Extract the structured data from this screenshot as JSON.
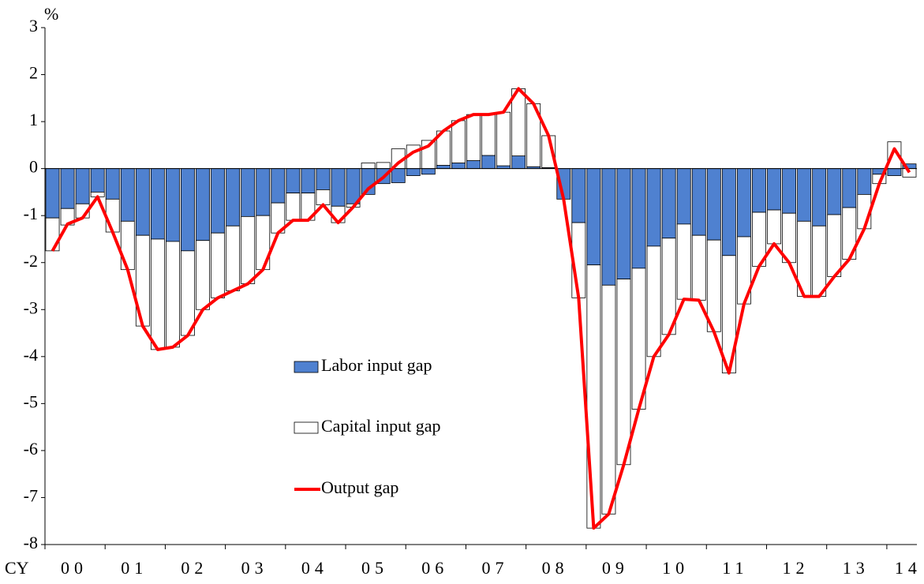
{
  "chart_data": {
    "type": "bar",
    "ylabel": "%",
    "xlabel": "CY",
    "categories": [
      "00",
      null,
      null,
      null,
      "01",
      null,
      null,
      null,
      "02",
      null,
      null,
      null,
      "03",
      null,
      null,
      null,
      "04",
      null,
      null,
      null,
      "05",
      null,
      null,
      null,
      "06",
      null,
      null,
      null,
      "07",
      null,
      null,
      null,
      "08",
      null,
      null,
      null,
      "09",
      null,
      null,
      null,
      "10",
      null,
      null,
      null,
      "11",
      null,
      null,
      null,
      "12",
      null,
      null,
      null,
      "13",
      null,
      null,
      null,
      "14",
      null
    ],
    "series": [
      {
        "name": "Labor input gap",
        "type": "bar",
        "color": "#4f81d0",
        "values": [
          -1.05,
          -0.85,
          -0.75,
          -0.5,
          -0.65,
          -1.12,
          -1.42,
          -1.5,
          -1.55,
          -1.75,
          -1.53,
          -1.37,
          -1.22,
          -1.02,
          -1.0,
          -0.73,
          -0.52,
          -0.52,
          -0.45,
          -0.8,
          -0.75,
          -0.55,
          -0.32,
          -0.3,
          -0.15,
          -0.12,
          0.07,
          0.12,
          0.17,
          0.28,
          0.06,
          0.27,
          0.04,
          0.02,
          -0.65,
          -1.15,
          -2.05,
          -2.48,
          -2.35,
          -2.12,
          -1.65,
          -1.48,
          -1.18,
          -1.42,
          -1.52,
          -1.85,
          -1.45,
          -0.93,
          -0.88,
          -0.95,
          -1.12,
          -1.22,
          -0.98,
          -0.83,
          -0.55,
          -0.12,
          -0.15,
          0.1
        ]
      },
      {
        "name": "Capital input gap",
        "type": "bar",
        "color": "#ffffff",
        "values": [
          -0.7,
          -0.35,
          -0.3,
          -0.1,
          -0.7,
          -1.03,
          -1.93,
          -2.35,
          -2.25,
          -1.8,
          -1.47,
          -1.38,
          -1.38,
          -1.43,
          -1.15,
          -0.64,
          -0.58,
          -0.58,
          -0.32,
          -0.35,
          -0.07,
          0.12,
          0.13,
          0.42,
          0.5,
          0.6,
          0.73,
          0.9,
          0.98,
          0.87,
          1.14,
          1.43,
          1.34,
          0.68,
          0,
          -1.6,
          -5.6,
          -4.87,
          -3.95,
          -3.0,
          -2.35,
          -2.05,
          -1.6,
          -1.38,
          -1.95,
          -2.5,
          -1.43,
          -1.15,
          -0.72,
          -1.05,
          -1.6,
          -1.5,
          -1.32,
          -1.1,
          -0.73,
          -0.2,
          0.57,
          -0.18
        ]
      },
      {
        "name": "Output gap",
        "type": "line",
        "color": "#ff0000",
        "values": [
          -1.75,
          -1.18,
          -1.05,
          -0.6,
          -1.35,
          -2.15,
          -3.35,
          -3.85,
          -3.8,
          -3.55,
          -3.0,
          -2.75,
          -2.6,
          -2.45,
          -2.15,
          -1.37,
          -1.1,
          -1.1,
          -0.77,
          -1.15,
          -0.82,
          -0.43,
          -0.19,
          0.12,
          0.35,
          0.48,
          0.8,
          1.02,
          1.15,
          1.15,
          1.2,
          1.7,
          1.38,
          0.7,
          -0.65,
          -2.75,
          -7.65,
          -7.35,
          -6.3,
          -5.12,
          -4.0,
          -3.53,
          -2.78,
          -2.8,
          -3.47,
          -4.35,
          -2.88,
          -2.08,
          -1.6,
          -2.0,
          -2.72,
          -2.72,
          -2.3,
          -1.93,
          -1.28,
          -0.32,
          0.42,
          -0.08
        ]
      }
    ],
    "ylim": [
      -8,
      3
    ],
    "yticks": [
      -8,
      -7,
      -6,
      -5,
      -4,
      -3,
      -2,
      -1,
      0,
      1,
      2,
      3
    ],
    "legend": "center"
  }
}
